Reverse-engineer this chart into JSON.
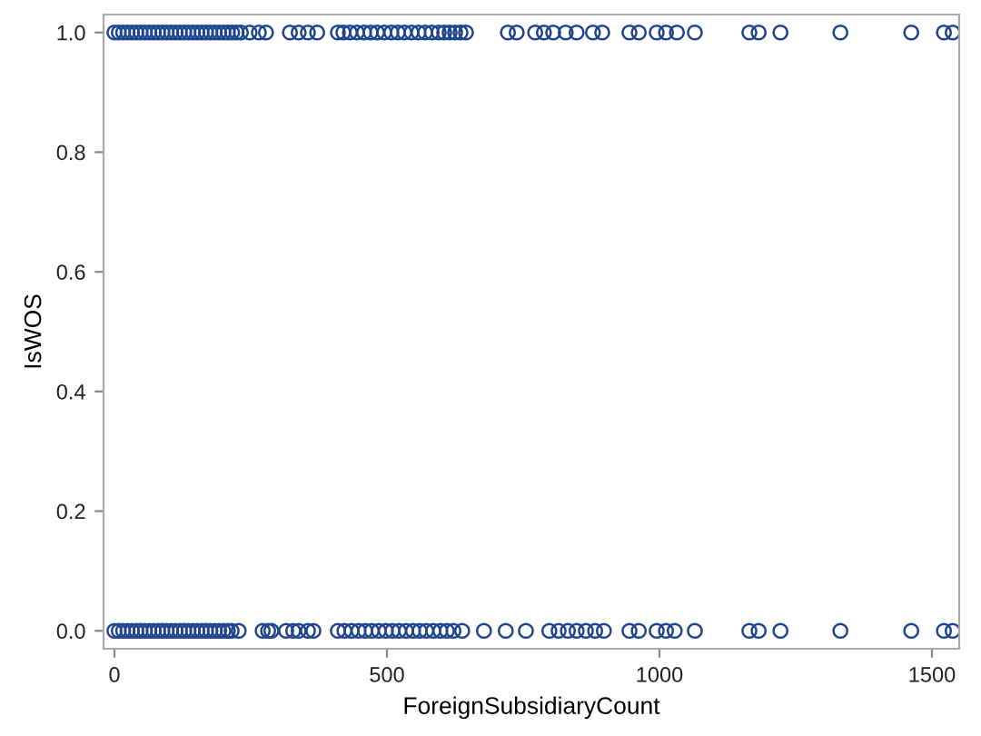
{
  "chart_data": {
    "type": "scatter",
    "xlabel": "ForeignSubsidiaryCount",
    "ylabel": "IsWOS",
    "xlim": [
      -20,
      1550
    ],
    "ylim": [
      -0.03,
      1.03
    ],
    "xticks": [
      0,
      500,
      1000,
      1500
    ],
    "yticks": [
      {
        "value": 0,
        "label": "0.0"
      },
      {
        "value": 0.2,
        "label": "0.2"
      },
      {
        "value": 0.4,
        "label": "0.4"
      },
      {
        "value": 0.6,
        "label": "0.6"
      },
      {
        "value": 0.8,
        "label": "0.8"
      },
      {
        "value": 1,
        "label": "1.0"
      }
    ],
    "grid": false,
    "legend": false,
    "marker": "circle",
    "series": [
      {
        "color": "#1f4591",
        "x": [
          0,
          8,
          16,
          24,
          32,
          40,
          48,
          56,
          64,
          72,
          80,
          88,
          96,
          104,
          112,
          120,
          128,
          136,
          144,
          152,
          160,
          168,
          176,
          184,
          192,
          200,
          208,
          216,
          224,
          232,
          248,
          265,
          278,
          322,
          338,
          355,
          372,
          410,
          420,
          432,
          445,
          458,
          470,
          482,
          495,
          508,
          520,
          532,
          545,
          558,
          570,
          582,
          595,
          605,
          615,
          625,
          635,
          645,
          722,
          738,
          772,
          788,
          805,
          828,
          848,
          878,
          895,
          945,
          962,
          995,
          1012,
          1032,
          1065,
          1165,
          1182,
          1222,
          1332,
          1462,
          1522,
          1538
        ],
        "values": [
          1,
          1,
          1,
          1,
          1,
          1,
          1,
          1,
          1,
          1,
          1,
          1,
          1,
          1,
          1,
          1,
          1,
          1,
          1,
          1,
          1,
          1,
          1,
          1,
          1,
          1,
          1,
          1,
          1,
          1,
          1,
          1,
          1,
          1,
          1,
          1,
          1,
          1,
          1,
          1,
          1,
          1,
          1,
          1,
          1,
          1,
          1,
          1,
          1,
          1,
          1,
          1,
          1,
          1,
          1,
          1,
          1,
          1,
          1,
          1,
          1,
          1,
          1,
          1,
          1,
          1,
          1,
          1,
          1,
          1,
          1,
          1,
          1,
          1,
          1,
          1,
          1,
          1,
          1,
          1
        ]
      },
      {
        "color": "#1f4591",
        "x": [
          0,
          8,
          16,
          24,
          32,
          40,
          48,
          56,
          64,
          72,
          80,
          88,
          96,
          104,
          112,
          120,
          128,
          136,
          144,
          152,
          160,
          168,
          176,
          184,
          192,
          200,
          208,
          215,
          228,
          272,
          282,
          288,
          315,
          328,
          338,
          355,
          365,
          410,
          422,
          435,
          448,
          460,
          472,
          485,
          498,
          510,
          522,
          535,
          548,
          560,
          572,
          585,
          598,
          610,
          622,
          638,
          678,
          718,
          755,
          798,
          815,
          832,
          848,
          865,
          882,
          898,
          945,
          962,
          995,
          1012,
          1028,
          1065,
          1165,
          1182,
          1222,
          1332,
          1462,
          1522,
          1538
        ],
        "values": [
          0,
          0,
          0,
          0,
          0,
          0,
          0,
          0,
          0,
          0,
          0,
          0,
          0,
          0,
          0,
          0,
          0,
          0,
          0,
          0,
          0,
          0,
          0,
          0,
          0,
          0,
          0,
          0,
          0,
          0,
          0,
          0,
          0,
          0,
          0,
          0,
          0,
          0,
          0,
          0,
          0,
          0,
          0,
          0,
          0,
          0,
          0,
          0,
          0,
          0,
          0,
          0,
          0,
          0,
          0,
          0,
          0,
          0,
          0,
          0,
          0,
          0,
          0,
          0,
          0,
          0,
          0,
          0,
          0,
          0,
          0,
          0,
          0,
          0,
          0,
          0,
          0,
          0,
          0
        ]
      }
    ]
  }
}
